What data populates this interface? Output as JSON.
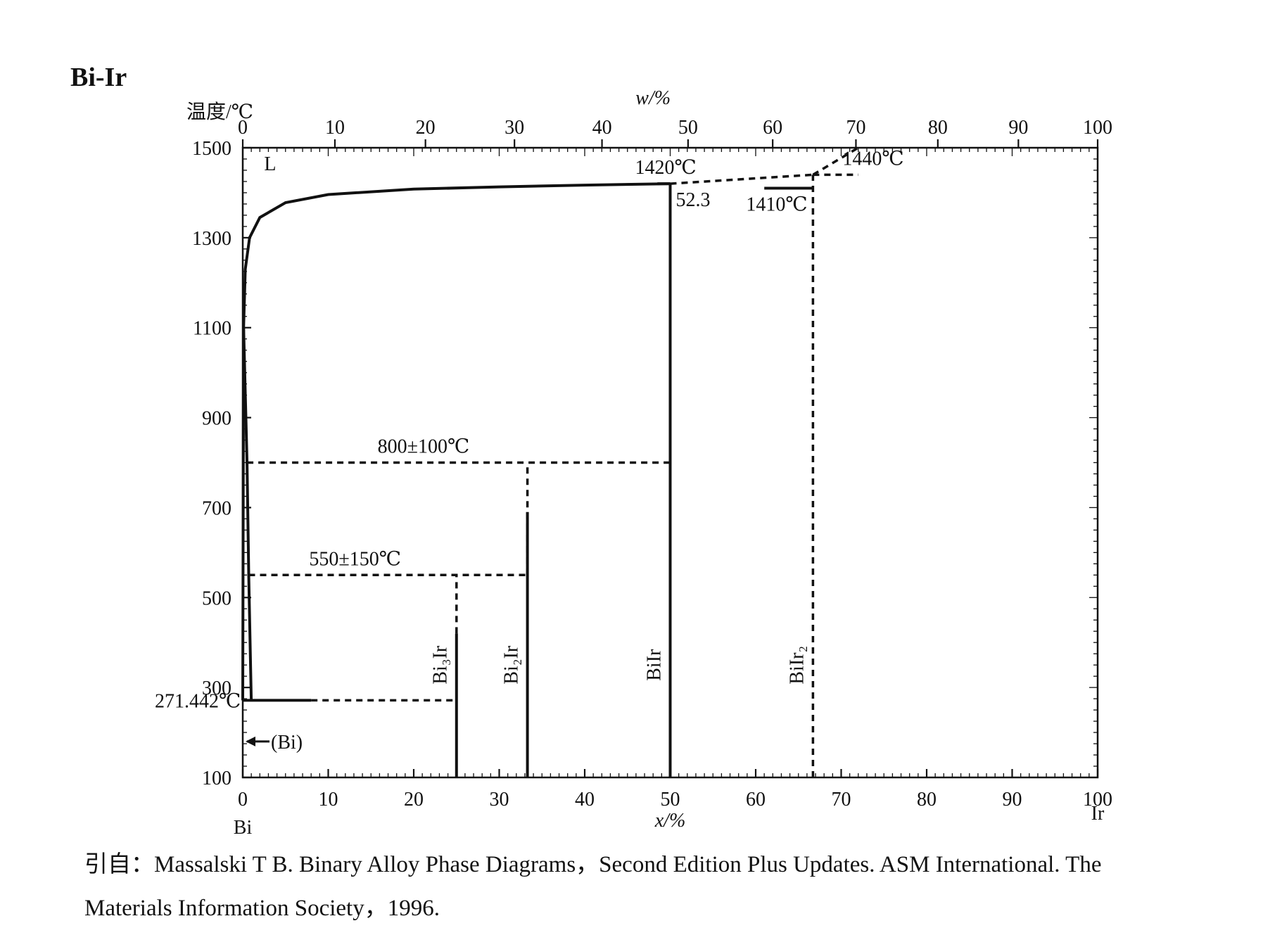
{
  "chart_data": {
    "type": "phase-diagram",
    "system_title": "Bi-Ir",
    "ylabel": "温度/℃",
    "top_axis_label": "w/%",
    "bottom_axis_label": "x/%",
    "left_component": "Bi",
    "right_component": "Ir",
    "ylim": [
      100,
      1500
    ],
    "xlim": [
      0,
      100
    ],
    "y_ticks": [
      1500,
      1300,
      1100,
      900,
      700,
      500,
      300,
      100
    ],
    "x_ticks": [
      0,
      10,
      20,
      30,
      40,
      50,
      60,
      70,
      80,
      90,
      100
    ],
    "w_ticks": [
      0,
      10,
      20,
      30,
      40,
      50,
      60,
      70,
      80,
      90,
      100
    ],
    "region_label": "L",
    "annotations": [
      {
        "id": "bi-melting",
        "text": "271.442℃",
        "x": 0,
        "y": 271.442
      },
      {
        "id": "bi-solid",
        "text": "(Bi)",
        "x": 0,
        "y": 180
      },
      {
        "id": "peritectic-800",
        "text": "800±100℃",
        "x": 24,
        "y": 800
      },
      {
        "id": "peritectic-550",
        "text": "550±150℃",
        "x": 16,
        "y": 550
      },
      {
        "id": "peritectic-1420",
        "text": "1420℃",
        "x": 50,
        "y": 1420
      },
      {
        "id": "composition-52-3",
        "text": "52.3",
        "x": 52.3,
        "y": 1420
      },
      {
        "id": "peritectic-1410",
        "text": "1410℃",
        "x": 66.7,
        "y": 1410
      },
      {
        "id": "bir2-melting",
        "text": "1440℃",
        "x": 66.7,
        "y": 1440
      }
    ],
    "compounds": [
      {
        "name": "Bi₃Ir",
        "x": 25
      },
      {
        "name": "Bi₂Ir",
        "x": 33.3
      },
      {
        "name": "BiIr",
        "x": 50
      },
      {
        "name": "BiIr₂",
        "x": 66.7
      }
    ],
    "liquidus": [
      [
        0,
        271.442
      ],
      [
        0.1,
        1100
      ],
      [
        0.3,
        1230
      ],
      [
        0.8,
        1300
      ],
      [
        2,
        1345
      ],
      [
        5,
        1378
      ],
      [
        10,
        1396
      ],
      [
        20,
        1408
      ],
      [
        30,
        1413
      ],
      [
        40,
        1417
      ],
      [
        50,
        1420
      ]
    ],
    "solid_lines": [
      {
        "id": "bi-solidus",
        "points": [
          [
            0.1,
            1100
          ],
          [
            0.5,
            800
          ],
          [
            0.7,
            550
          ],
          [
            1.0,
            271.442
          ]
        ]
      },
      {
        "id": "eutectic-271",
        "points": [
          [
            0,
            271.442
          ],
          [
            8,
            271.442
          ]
        ]
      },
      {
        "id": "bi3ir-line",
        "points": [
          [
            25,
            100
          ],
          [
            25,
            420
          ]
        ]
      },
      {
        "id": "bi2ir-line",
        "points": [
          [
            33.3,
            100
          ],
          [
            33.3,
            690
          ]
        ]
      },
      {
        "id": "biir-line",
        "points": [
          [
            50,
            100
          ],
          [
            50,
            1420
          ]
        ]
      },
      {
        "id": "iso-1420",
        "points": [
          [
            48.5,
            1420
          ],
          [
            50,
            1420
          ]
        ]
      },
      {
        "id": "iso-1410",
        "points": [
          [
            61,
            1410
          ],
          [
            66.7,
            1410
          ]
        ]
      }
    ],
    "dashed_lines": [
      {
        "id": "iso-271-ext",
        "points": [
          [
            8,
            271.442
          ],
          [
            25,
            271.442
          ]
        ]
      },
      {
        "id": "bi3ir-upper",
        "points": [
          [
            25,
            420
          ],
          [
            25,
            550
          ]
        ]
      },
      {
        "id": "iso-550",
        "points": [
          [
            0.7,
            550
          ],
          [
            33.3,
            550
          ]
        ]
      },
      {
        "id": "bi2ir-upper",
        "points": [
          [
            33.3,
            550
          ],
          [
            33.3,
            800
          ]
        ]
      },
      {
        "id": "iso-800",
        "points": [
          [
            0.5,
            800
          ],
          [
            50,
            800
          ]
        ]
      },
      {
        "id": "bir2-line",
        "points": [
          [
            66.7,
            100
          ],
          [
            66.7,
            1440
          ]
        ]
      },
      {
        "id": "liquidus-ext",
        "points": [
          [
            50,
            1420
          ],
          [
            66.7,
            1440
          ]
        ]
      },
      {
        "id": "iso-1440",
        "points": [
          [
            66.7,
            1440
          ],
          [
            72,
            1440
          ]
        ]
      },
      {
        "id": "top-ext",
        "points": [
          [
            66.7,
            1440
          ],
          [
            72,
            1500
          ]
        ]
      }
    ],
    "grid": false
  },
  "caption": {
    "line1": "引自：Massalski T B. Binary Alloy Phase Diagrams，Second Edition Plus Updates. ASM International. The",
    "line2": "Materials Information Society，1996."
  }
}
